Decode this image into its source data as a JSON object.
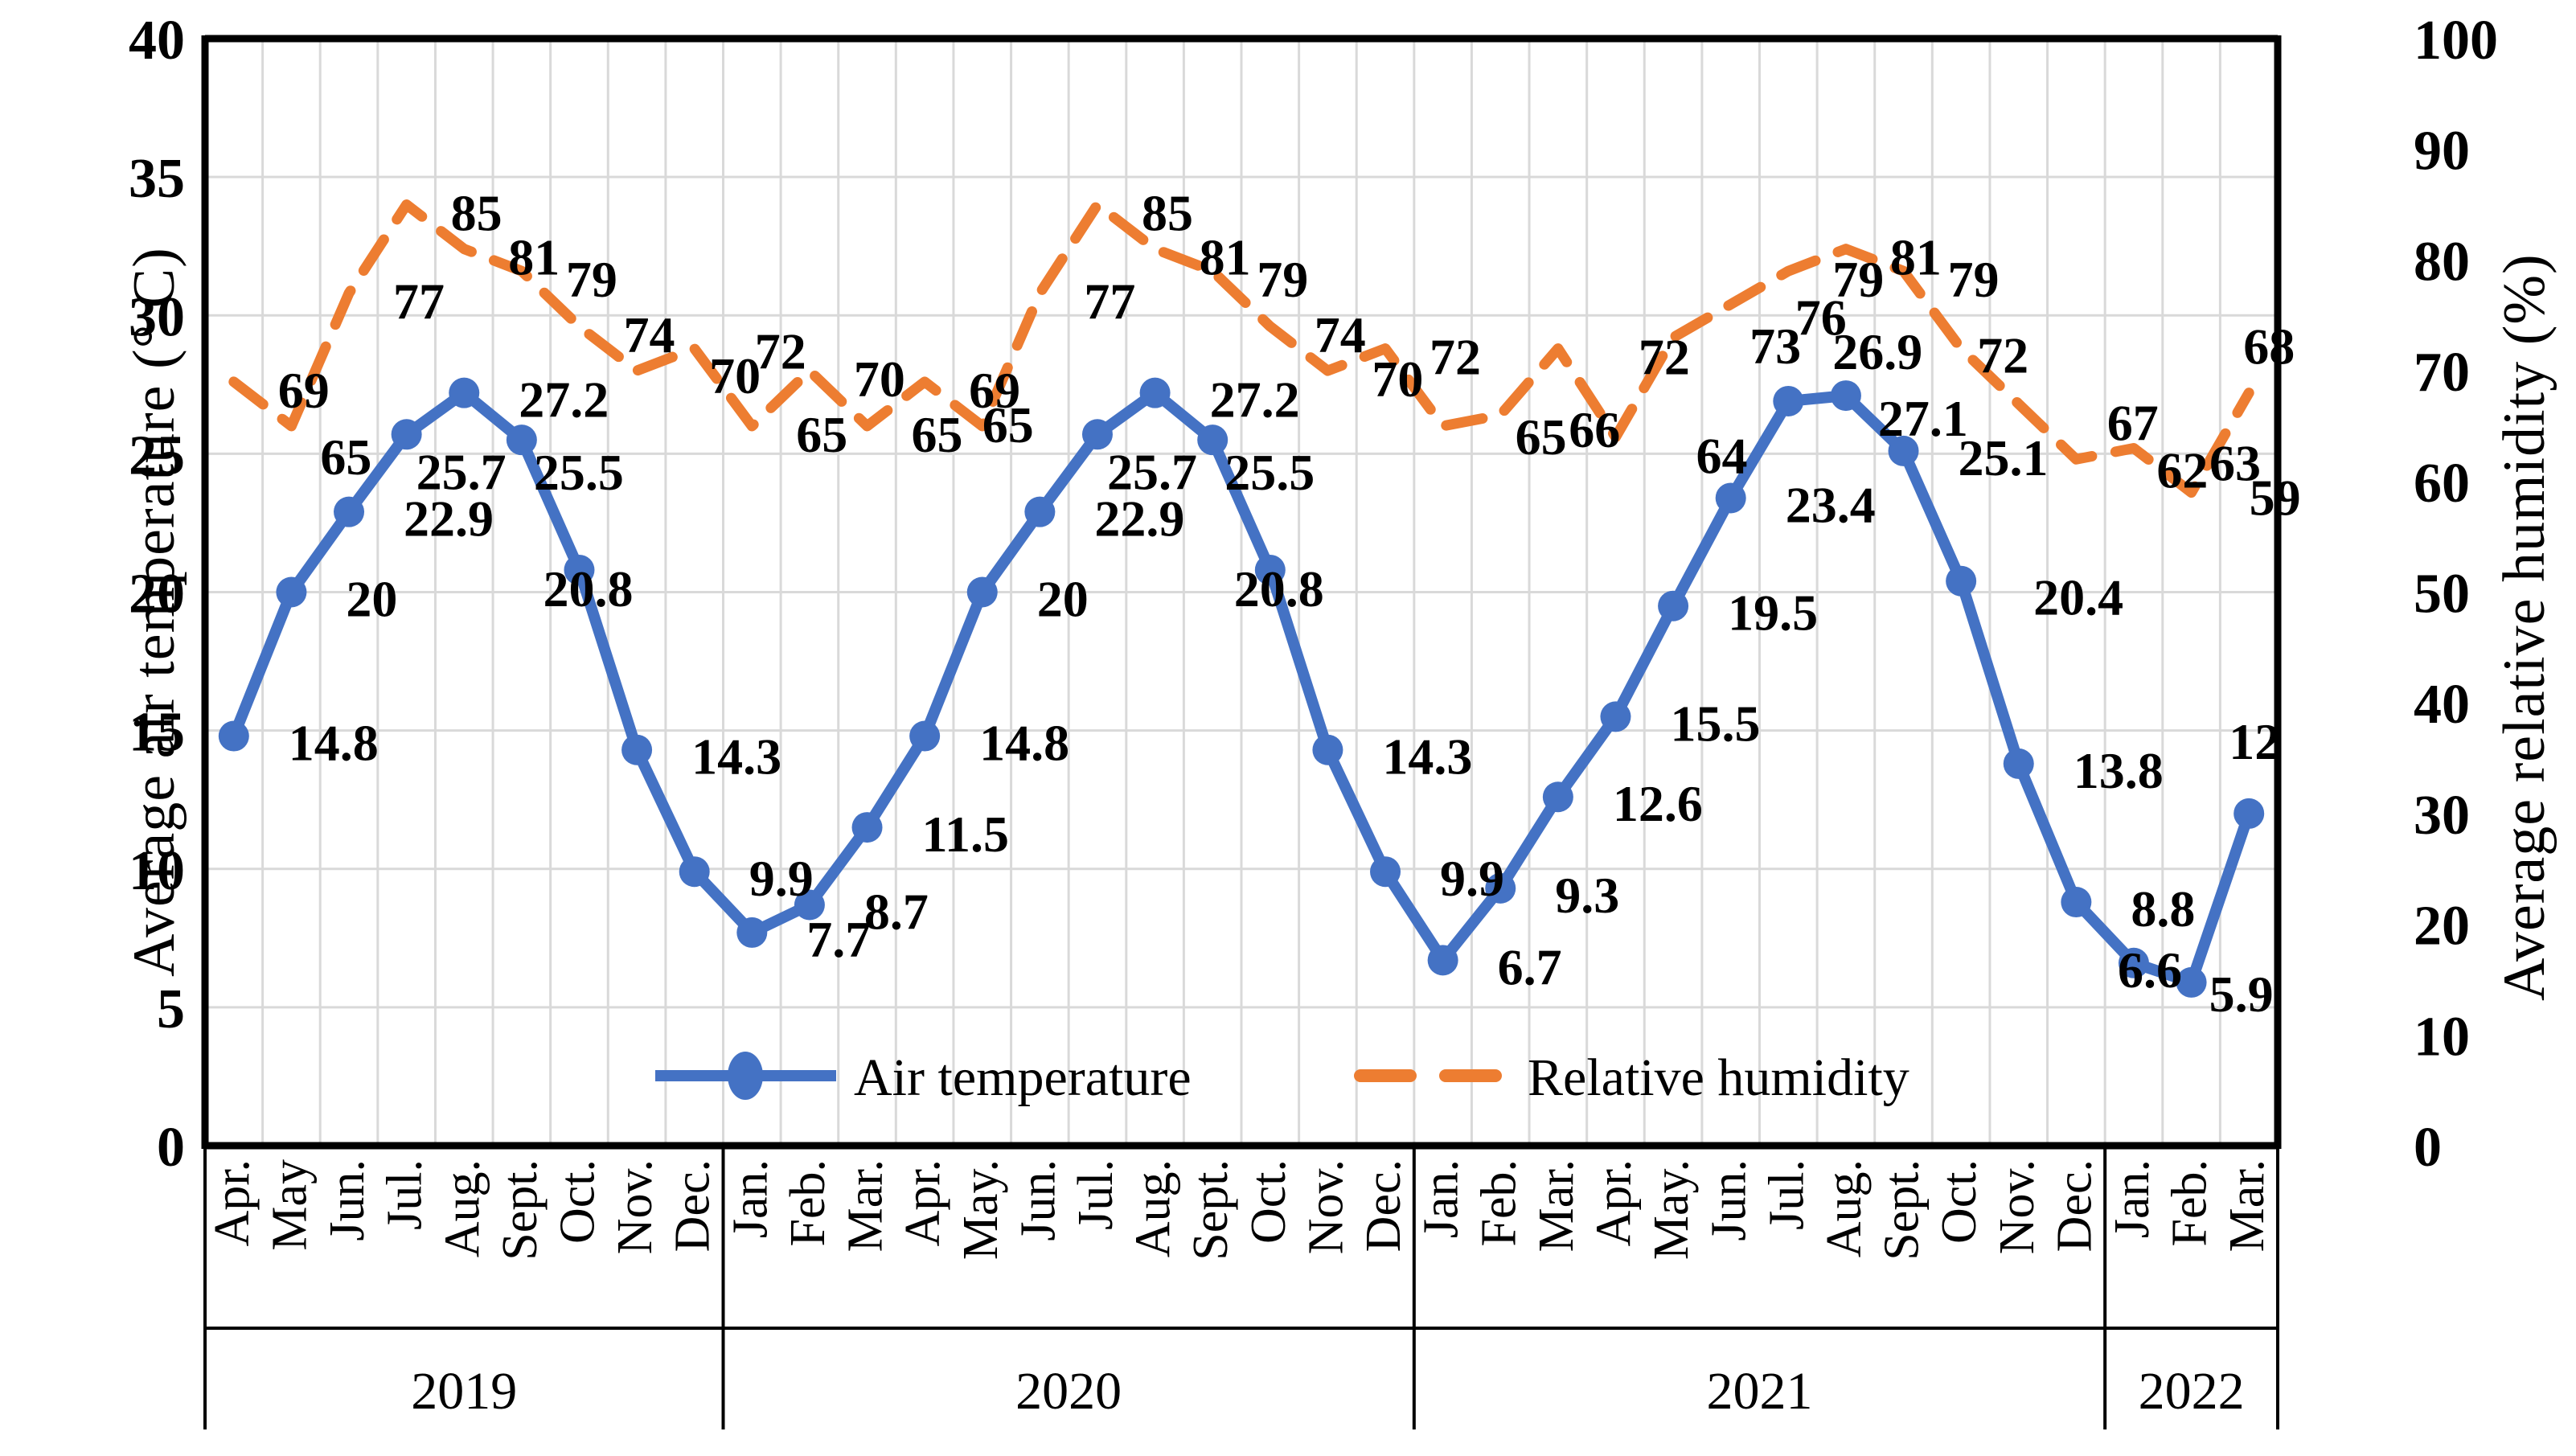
{
  "chart_data": {
    "type": "line",
    "title": "",
    "months": [
      "Apr.",
      "May",
      "Jun.",
      "Jul.",
      "Aug.",
      "Sept.",
      "Oct.",
      "Nov.",
      "Dec.",
      "Jan.",
      "Feb.",
      "Mar.",
      "Apr.",
      "May.",
      "Jun.",
      "Jul.",
      "Aug.",
      "Sept.",
      "Oct.",
      "Nov.",
      "Dec.",
      "Jan.",
      "Feb.",
      "Mar.",
      "Apr.",
      "May.",
      "Jun.",
      "Jul.",
      "Aug.",
      "Sept.",
      "Oct.",
      "Nov.",
      "Dec.",
      "Jan.",
      "Feb.",
      "Mar."
    ],
    "year_groups": [
      {
        "label": "2019",
        "months": 9
      },
      {
        "label": "2020",
        "months": 12
      },
      {
        "label": "2021",
        "months": 12
      },
      {
        "label": "2022",
        "months": 3
      }
    ],
    "left_axis": {
      "title": "Average air temperature (° C)",
      "min": 0,
      "max": 40,
      "step": 5,
      "ticks": [
        "0",
        "5",
        "10",
        "15",
        "20",
        "25",
        "30",
        "35",
        "40"
      ]
    },
    "right_axis": {
      "title": "Average relative humidity (%)",
      "min": 0,
      "max": 100,
      "step": 10,
      "ticks": [
        "0",
        "10",
        "20",
        "30",
        "40",
        "50",
        "60",
        "70",
        "80",
        "90",
        "100"
      ]
    },
    "series": [
      {
        "name": "Air temperature",
        "axis": "left",
        "color": "#4472C4",
        "line_style": "solid",
        "marker": "circle",
        "values": [
          14.8,
          20,
          22.9,
          25.7,
          27.2,
          25.5,
          20.8,
          14.3,
          9.9,
          7.7,
          8.7,
          11.5,
          14.8,
          20,
          22.9,
          25.7,
          27.2,
          25.5,
          20.8,
          14.3,
          9.9,
          6.7,
          9.3,
          12.6,
          15.5,
          19.5,
          23.4,
          26.9,
          27.1,
          25.1,
          20.4,
          13.8,
          8.8,
          6.6,
          5.9,
          12
        ]
      },
      {
        "name": "Relative humidity",
        "axis": "right",
        "color": "#ED7D31",
        "line_style": "dashed",
        "marker": "none",
        "values": [
          69,
          65,
          77,
          85,
          81,
          79,
          74,
          70,
          72,
          65,
          70,
          65,
          69,
          65,
          77,
          85,
          81,
          79,
          74,
          70,
          72,
          65,
          66,
          72,
          64,
          73,
          76,
          79,
          81,
          79,
          72,
          67,
          62,
          63,
          59,
          68
        ]
      }
    ],
    "legend": [
      "Air temperature",
      "Relative humidity"
    ],
    "grid_color": "#D9D9D9",
    "axis_color": "#000000"
  }
}
